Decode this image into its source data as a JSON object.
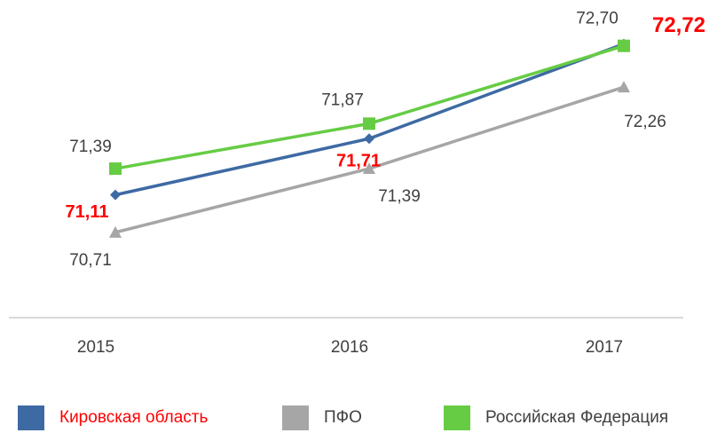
{
  "chart_data": {
    "type": "line",
    "x": [
      "2015",
      "2016",
      "2017"
    ],
    "series": [
      {
        "name": "Кировская область",
        "color": "#3e6aa3",
        "marker": "diamond",
        "label_color": "#ff0000",
        "label_bold": true,
        "values": [
          71.11,
          71.71,
          72.72
        ],
        "value_labels": [
          "71,11",
          "71,71",
          "72,72"
        ]
      },
      {
        "name": "ПФО",
        "color": "#a6a6a6",
        "marker": "triangle",
        "label_color": "#404040",
        "label_bold": false,
        "values": [
          70.71,
          71.39,
          72.26
        ],
        "value_labels": [
          "70,71",
          "71,39",
          "72,26"
        ]
      },
      {
        "name": "Российская Федерация",
        "color": "#66cc44",
        "marker": "square",
        "label_color": "#404040",
        "label_bold": false,
        "values": [
          71.39,
          71.87,
          72.7
        ],
        "value_labels": [
          "71,39",
          "71,87",
          "72,70"
        ]
      }
    ],
    "ylim": [
      69.8,
      73.0
    ],
    "legend": "bottom"
  }
}
